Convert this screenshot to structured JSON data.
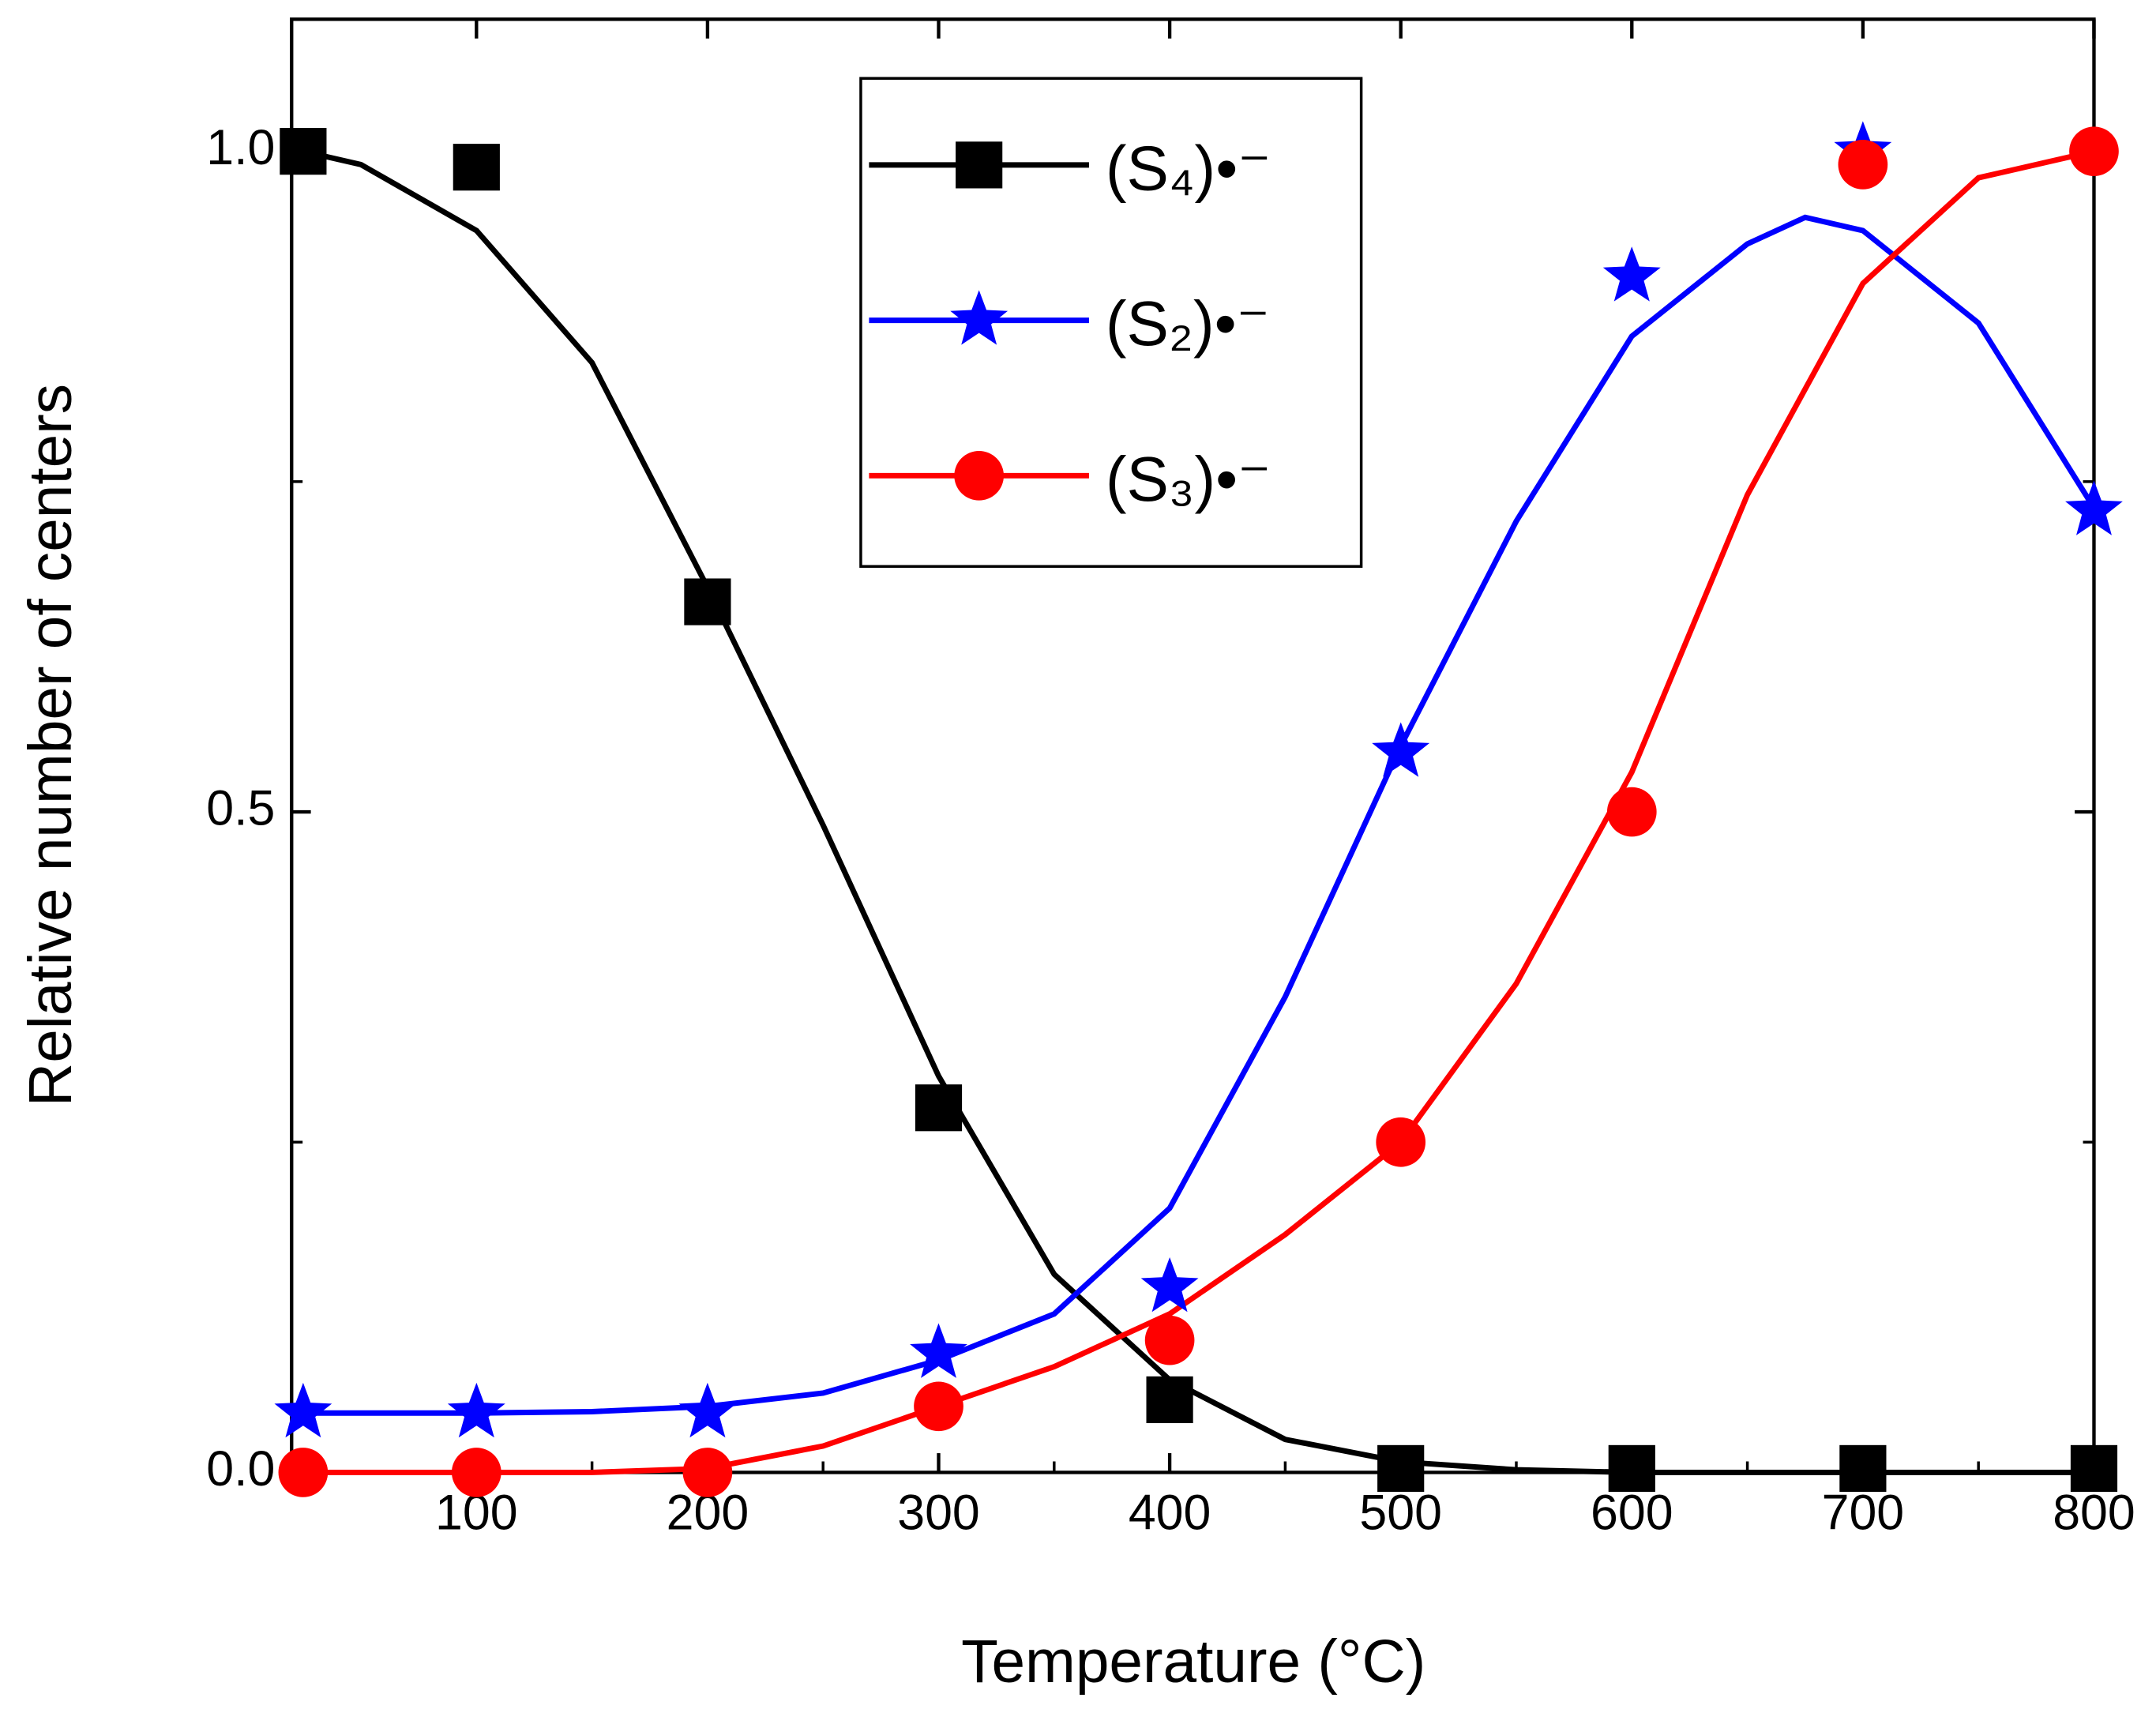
{
  "chart_data": {
    "type": "scatter",
    "xlabel": "Temperature (°C)",
    "ylabel": "Relative number of centers",
    "xlim": [
      20,
      800
    ],
    "ylim": [
      0,
      1.1
    ],
    "xticks": [
      100,
      200,
      300,
      400,
      500,
      600,
      700,
      800
    ],
    "yticks": [
      {
        "value": 0,
        "label": "0.0"
      },
      {
        "value": 0.5,
        "label": "0.5"
      },
      {
        "value": 1,
        "label": "1.0"
      }
    ],
    "legend": "top-center",
    "series": [
      {
        "name": "(S₄)•⁻",
        "color": "#000000",
        "marker": "square",
        "x": [
          25,
          100,
          200,
          300,
          400,
          500,
          600,
          700,
          800
        ],
        "values": [
          1.0,
          0.988,
          0.659,
          0.276,
          0.055,
          0.003,
          0.003,
          0.003,
          0.003
        ],
        "fit_x": [
          25,
          50,
          100,
          150,
          200,
          250,
          300,
          350,
          400,
          450,
          500,
          550,
          600,
          700,
          800
        ],
        "fit_values": [
          1.0,
          0.99,
          0.94,
          0.84,
          0.67,
          0.49,
          0.3,
          0.15,
          0.07,
          0.025,
          0.008,
          0.002,
          0,
          0,
          0
        ]
      },
      {
        "name": "(S₂)•⁻",
        "color": "#0000ff",
        "marker": "star",
        "x": [
          25,
          100,
          200,
          300,
          400,
          500,
          600,
          700,
          800
        ],
        "values": [
          0.045,
          0.045,
          0.045,
          0.09,
          0.14,
          0.545,
          0.905,
          1.0,
          0.728
        ],
        "fit_x": [
          25,
          100,
          150,
          200,
          250,
          300,
          350,
          400,
          450,
          500,
          550,
          600,
          650,
          675,
          700,
          750,
          800
        ],
        "fit_values": [
          0.045,
          0.045,
          0.046,
          0.05,
          0.06,
          0.085,
          0.12,
          0.2,
          0.36,
          0.55,
          0.72,
          0.86,
          0.93,
          0.95,
          0.94,
          0.87,
          0.73
        ]
      },
      {
        "name": "(S₃)•⁻",
        "color": "#ff0000",
        "marker": "circle",
        "x": [
          25,
          100,
          200,
          300,
          400,
          500,
          600,
          700,
          800
        ],
        "values": [
          0,
          0,
          0,
          0.05,
          0.1,
          0.25,
          0.5,
          0.99,
          1.0
        ],
        "fit_x": [
          25,
          100,
          150,
          200,
          250,
          300,
          350,
          400,
          450,
          500,
          550,
          600,
          650,
          700,
          750,
          800
        ],
        "fit_values": [
          0,
          0,
          0,
          0.003,
          0.02,
          0.05,
          0.08,
          0.12,
          0.18,
          0.25,
          0.37,
          0.53,
          0.74,
          0.9,
          0.98,
          1.0
        ]
      }
    ]
  }
}
